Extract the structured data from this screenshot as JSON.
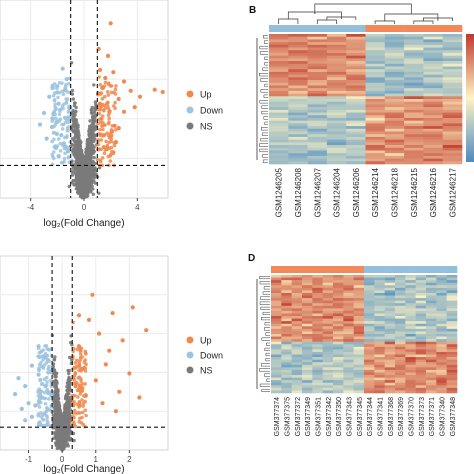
{
  "figure": {
    "panel_labels": [
      "B",
      "D"
    ],
    "colors": {
      "up": "#f0894e",
      "down": "#9ec3df",
      "ns": "#7a7a7a",
      "heat_high": "#c0392b",
      "heat_mid": "#fff4c2",
      "heat_low": "#4a8bc4",
      "group_orange": "#f2895b",
      "group_blue": "#93bfdc"
    }
  },
  "chart_data": [
    {
      "type": "scatter",
      "id": "volcano-top",
      "xlabel": "log₂(Fold Change)",
      "ylabel": "",
      "xticks": [
        "-4",
        "0",
        "4"
      ],
      "xtick_values": [
        -4,
        0,
        4
      ],
      "xlim": [
        -6.3,
        6.3
      ],
      "ylim": [
        0,
        17
      ],
      "thresholds": {
        "fc": [
          -1,
          1
        ],
        "p": 2.8
      },
      "legend": {
        "placement": "right",
        "entries": [
          "Up",
          "Down",
          "NS"
        ]
      },
      "grid": true,
      "series": [
        {
          "name": "Up",
          "points": [
            [
              1.4,
              9.5
            ],
            [
              1.8,
              12.2
            ],
            [
              2.2,
              10.8
            ],
            [
              2.6,
              8.5
            ],
            [
              3.0,
              10.0
            ],
            [
              3.5,
              9.2
            ],
            [
              4.2,
              8.7
            ],
            [
              5.3,
              9.3
            ],
            [
              5.9,
              9.1
            ],
            [
              1.3,
              6.8
            ],
            [
              1.9,
              7.4
            ],
            [
              2.3,
              6.2
            ],
            [
              3.0,
              7.4
            ],
            [
              1.5,
              5.4
            ],
            [
              2.1,
              5.7
            ],
            [
              1.2,
              8.1
            ],
            [
              1.7,
              4.2
            ],
            [
              2.6,
              6.0
            ],
            [
              1.2,
              11.0
            ],
            [
              3.8,
              7.8
            ],
            [
              1.6,
              10.3
            ],
            [
              2.4,
              4.8
            ],
            [
              1.1,
              12.8
            ],
            [
              2.0,
              15.0
            ]
          ]
        },
        {
          "name": "Down",
          "points": [
            [
              -1.4,
              9.3
            ],
            [
              -1.9,
              8.1
            ],
            [
              -2.3,
              7.2
            ],
            [
              -2.6,
              8.7
            ],
            [
              -3.3,
              6.3
            ],
            [
              -1.2,
              6.9
            ],
            [
              -1.7,
              5.4
            ],
            [
              -2.1,
              4.3
            ],
            [
              -2.8,
              5.1
            ],
            [
              -1.3,
              10.2
            ],
            [
              -2.0,
              9.6
            ],
            [
              -1.5,
              4.7
            ],
            [
              -2.4,
              6.1
            ],
            [
              -1.1,
              7.7
            ],
            [
              -3.0,
              7.3
            ],
            [
              -1.6,
              11.1
            ],
            [
              -1.2,
              4.0
            ],
            [
              -1.9,
              3.6
            ]
          ]
        }
      ]
    },
    {
      "type": "heatmap",
      "id": "heatmap-b",
      "columns": [
        "GSM1246205",
        "GSM1246208",
        "GSM1246207",
        "GSM1246204",
        "GSM1246206",
        "GSM1246214",
        "GSM1246218",
        "GSM1246215",
        "GSM1246216",
        "GSM1246217"
      ],
      "groups": [
        "group_blue",
        "group_blue",
        "group_blue",
        "group_blue",
        "group_blue",
        "group_orange",
        "group_orange",
        "group_orange",
        "group_orange",
        "group_orange"
      ],
      "legend": {
        "placement": "right"
      }
    },
    {
      "type": "scatter",
      "id": "volcano-bottom",
      "xlabel": "log₂(Fold Change)",
      "ylabel": "",
      "xticks": [
        "-1",
        "0",
        "1",
        "2"
      ],
      "xtick_values": [
        -1,
        0,
        1,
        2
      ],
      "xlim": [
        -1.85,
        3.15
      ],
      "ylim": [
        0,
        17
      ],
      "thresholds": {
        "fc": [
          -0.3,
          0.3
        ],
        "p": 2.0
      },
      "legend": {
        "placement": "right",
        "entries": [
          "Up",
          "Down",
          "NS"
        ]
      },
      "grid": true,
      "series": [
        {
          "name": "Up",
          "points": [
            [
              0.5,
              9.1
            ],
            [
              0.8,
              11.4
            ],
            [
              1.1,
              10.2
            ],
            [
              1.4,
              8.7
            ],
            [
              1.8,
              9.6
            ],
            [
              2.1,
              12.5
            ],
            [
              2.5,
              10.5
            ],
            [
              0.6,
              7.1
            ],
            [
              1.0,
              6.1
            ],
            [
              1.3,
              7.5
            ],
            [
              1.7,
              5.1
            ],
            [
              2.0,
              6.7
            ],
            [
              0.7,
              4.8
            ],
            [
              1.2,
              4.1
            ],
            [
              1.5,
              12.0
            ],
            [
              0.9,
              13.6
            ],
            [
              0.4,
              5.6
            ],
            [
              1.6,
              3.4
            ],
            [
              2.3,
              4.6
            ],
            [
              0.5,
              11.8
            ]
          ]
        },
        {
          "name": "Down",
          "points": [
            [
              -0.5,
              8.1
            ],
            [
              -0.7,
              6.6
            ],
            [
              -0.9,
              7.4
            ],
            [
              -1.1,
              5.6
            ],
            [
              -1.3,
              6.3
            ],
            [
              -0.6,
              4.6
            ],
            [
              -0.8,
              3.9
            ],
            [
              -1.0,
              4.1
            ],
            [
              -1.2,
              3.6
            ],
            [
              -0.5,
              5.6
            ],
            [
              -0.7,
              9.1
            ],
            [
              -1.4,
              4.9
            ],
            [
              -0.9,
              2.9
            ],
            [
              -1.1,
              2.6
            ]
          ]
        }
      ]
    },
    {
      "type": "heatmap",
      "id": "heatmap-d",
      "columns": [
        "GSM377374",
        "GSM377375",
        "GSM377372",
        "GSM377349",
        "GSM377351",
        "GSM377342",
        "GSM377350",
        "GSM377343",
        "GSM377345",
        "GSM377344",
        "GSM377341",
        "GSM377368",
        "GSM377369",
        "GSM377370",
        "GSM377373",
        "GSM377371",
        "GSM377340",
        "GSM377348"
      ],
      "groups": [
        "group_orange",
        "group_orange",
        "group_orange",
        "group_orange",
        "group_orange",
        "group_orange",
        "group_orange",
        "group_orange",
        "group_orange",
        "group_blue",
        "group_blue",
        "group_blue",
        "group_blue",
        "group_blue",
        "group_blue",
        "group_blue",
        "group_blue",
        "group_blue"
      ],
      "legend": {
        "placement": "right"
      }
    }
  ]
}
